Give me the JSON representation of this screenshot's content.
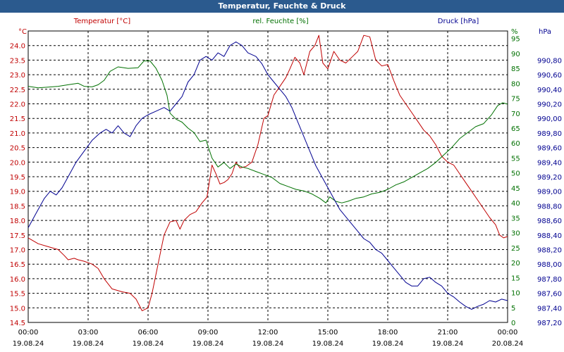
{
  "window": {
    "title": "Temperatur, Feuchte & Druck"
  },
  "chart_data": {
    "type": "line",
    "title": "Temperatur, Feuchte & Druck",
    "grid": true,
    "x_ticks": [
      {
        "time": "00:00",
        "date": "19.08.24"
      },
      {
        "time": "03:00",
        "date": "19.08.24"
      },
      {
        "time": "06:00",
        "date": "19.08.24"
      },
      {
        "time": "09:00",
        "date": "19.08.24"
      },
      {
        "time": "12:00",
        "date": "19.08.24"
      },
      {
        "time": "15:00",
        "date": "19.08.24"
      },
      {
        "time": "18:00",
        "date": "19.08.24"
      },
      {
        "time": "21:00",
        "date": "19.08.24"
      },
      {
        "time": "00:00",
        "date": "20.08.24"
      }
    ],
    "xlim_hours": [
      0,
      24
    ],
    "axes": {
      "temperature": {
        "label": "Temperatur [°C]",
        "unit": "°C",
        "color": "#c00000",
        "ylim": [
          14.5,
          24.5
        ],
        "ticks": [
          "14.5",
          "15.0",
          "15.5",
          "16.0",
          "16.5",
          "17.0",
          "17.5",
          "18.0",
          "18.5",
          "19.0",
          "19.5",
          "20.0",
          "20.5",
          "21.0",
          "21.5",
          "22.0",
          "22.5",
          "23.0",
          "23.5",
          "24.0"
        ]
      },
      "humidity": {
        "label": "rel. Feuchte [%]",
        "unit": "%",
        "color": "#007000",
        "ylim": [
          0,
          97.5
        ],
        "ticks": [
          "0",
          "5",
          "10",
          "15",
          "20",
          "25",
          "30",
          "35",
          "40",
          "45",
          "50",
          "55",
          "60",
          "65",
          "70",
          "75",
          "80",
          "85",
          "90",
          "95"
        ]
      },
      "pressure": {
        "label": "Druck [hPa]",
        "unit": "hPa",
        "color": "#000090",
        "ylim": [
          987.2,
          991.2
        ],
        "ticks": [
          "987,20",
          "987,40",
          "987,60",
          "987,80",
          "988,00",
          "988,20",
          "988,40",
          "988,60",
          "988,80",
          "989,00",
          "989,20",
          "989,40",
          "989,60",
          "989,80",
          "990,00",
          "990,20",
          "990,40",
          "990,60",
          "990,80"
        ]
      }
    },
    "series": [
      {
        "name": "Temperatur [°C]",
        "axis": "temperature",
        "color": "#c00000",
        "points": [
          [
            0,
            17.4
          ],
          [
            0.5,
            17.2
          ],
          [
            1,
            17.1
          ],
          [
            1.5,
            17.0
          ],
          [
            1.8,
            16.8
          ],
          [
            2,
            16.65
          ],
          [
            2.3,
            16.7
          ],
          [
            2.5,
            16.65
          ],
          [
            2.8,
            16.6
          ],
          [
            3.2,
            16.5
          ],
          [
            3.5,
            16.35
          ],
          [
            3.8,
            16.0
          ],
          [
            4.2,
            15.65
          ],
          [
            4.7,
            15.55
          ],
          [
            5.1,
            15.5
          ],
          [
            5.4,
            15.3
          ],
          [
            5.7,
            14.9
          ],
          [
            6.0,
            15.0
          ],
          [
            6.2,
            15.5
          ],
          [
            6.5,
            16.5
          ],
          [
            6.8,
            17.5
          ],
          [
            7.1,
            17.95
          ],
          [
            7.4,
            18.0
          ],
          [
            7.6,
            17.7
          ],
          [
            7.8,
            18.0
          ],
          [
            8.1,
            18.2
          ],
          [
            8.4,
            18.3
          ],
          [
            8.7,
            18.6
          ],
          [
            8.95,
            18.8
          ],
          [
            9.2,
            19.9
          ],
          [
            9.4,
            19.6
          ],
          [
            9.6,
            19.25
          ],
          [
            9.8,
            19.3
          ],
          [
            10.0,
            19.4
          ],
          [
            10.2,
            19.6
          ],
          [
            10.4,
            20.0
          ],
          [
            10.6,
            19.8
          ],
          [
            10.9,
            19.85
          ],
          [
            11.2,
            20.0
          ],
          [
            11.5,
            20.6
          ],
          [
            11.8,
            21.5
          ],
          [
            12.0,
            21.6
          ],
          [
            12.3,
            22.3
          ],
          [
            12.6,
            22.6
          ],
          [
            12.9,
            22.9
          ],
          [
            13.1,
            23.2
          ],
          [
            13.35,
            23.6
          ],
          [
            13.6,
            23.4
          ],
          [
            13.8,
            23.0
          ],
          [
            14.1,
            23.8
          ],
          [
            14.35,
            24.0
          ],
          [
            14.55,
            24.35
          ],
          [
            14.75,
            23.4
          ],
          [
            15.0,
            23.2
          ],
          [
            15.3,
            23.8
          ],
          [
            15.6,
            23.5
          ],
          [
            15.9,
            23.4
          ],
          [
            16.2,
            23.6
          ],
          [
            16.5,
            23.8
          ],
          [
            16.8,
            24.35
          ],
          [
            17.1,
            24.3
          ],
          [
            17.4,
            23.5
          ],
          [
            17.7,
            23.3
          ],
          [
            18.0,
            23.35
          ],
          [
            18.3,
            22.8
          ],
          [
            18.6,
            22.3
          ],
          [
            18.9,
            22.0
          ],
          [
            19.2,
            21.7
          ],
          [
            19.5,
            21.4
          ],
          [
            19.8,
            21.1
          ],
          [
            20.1,
            20.9
          ],
          [
            20.4,
            20.6
          ],
          [
            20.7,
            20.2
          ],
          [
            21.0,
            20.0
          ],
          [
            21.3,
            19.9
          ],
          [
            21.6,
            19.6
          ],
          [
            21.9,
            19.3
          ],
          [
            22.2,
            19.0
          ],
          [
            22.5,
            18.7
          ],
          [
            22.8,
            18.4
          ],
          [
            23.1,
            18.1
          ],
          [
            23.4,
            17.85
          ],
          [
            23.6,
            17.5
          ],
          [
            23.8,
            17.4
          ],
          [
            24.0,
            17.45
          ]
        ]
      },
      {
        "name": "rel. Feuchte [%]",
        "axis": "humidity",
        "color": "#007000",
        "points": [
          [
            0,
            79
          ],
          [
            0.5,
            78.5
          ],
          [
            1.0,
            78.7
          ],
          [
            1.5,
            79.0
          ],
          [
            2.0,
            79.5
          ],
          [
            2.5,
            80.0
          ],
          [
            2.8,
            79.0
          ],
          [
            3.2,
            78.8
          ],
          [
            3.5,
            79.5
          ],
          [
            3.8,
            81
          ],
          [
            4.1,
            84
          ],
          [
            4.5,
            85.5
          ],
          [
            5.0,
            85.0
          ],
          [
            5.5,
            85.2
          ],
          [
            5.8,
            87.5
          ],
          [
            6.1,
            87.5
          ],
          [
            6.4,
            85.0
          ],
          [
            6.7,
            81
          ],
          [
            6.95,
            76
          ],
          [
            7.1,
            70
          ],
          [
            7.4,
            68
          ],
          [
            7.7,
            67
          ],
          [
            8.0,
            65
          ],
          [
            8.3,
            63.5
          ],
          [
            8.6,
            60.5
          ],
          [
            8.9,
            61.0
          ],
          [
            9.2,
            55
          ],
          [
            9.5,
            52
          ],
          [
            9.8,
            53.5
          ],
          [
            10.1,
            51.5
          ],
          [
            10.4,
            53.0
          ],
          [
            10.7,
            52.0
          ],
          [
            11.0,
            51.5
          ],
          [
            11.4,
            50.5
          ],
          [
            11.8,
            49.5
          ],
          [
            12.2,
            48.5
          ],
          [
            12.6,
            46.5
          ],
          [
            13.0,
            45.5
          ],
          [
            13.4,
            44.5
          ],
          [
            13.8,
            44.0
          ],
          [
            14.2,
            43.0
          ],
          [
            14.6,
            41.5
          ],
          [
            14.9,
            40.0
          ],
          [
            15.1,
            42.0
          ],
          [
            15.4,
            40.5
          ],
          [
            15.7,
            40.0
          ],
          [
            16.0,
            40.5
          ],
          [
            16.4,
            41.5
          ],
          [
            16.8,
            42.0
          ],
          [
            17.2,
            43.0
          ],
          [
            17.6,
            43.5
          ],
          [
            18.0,
            44.5
          ],
          [
            18.4,
            46.0
          ],
          [
            18.8,
            47.0
          ],
          [
            19.2,
            48.5
          ],
          [
            19.6,
            50.0
          ],
          [
            20.0,
            51.5
          ],
          [
            20.4,
            53.5
          ],
          [
            20.8,
            56.0
          ],
          [
            21.2,
            58.5
          ],
          [
            21.6,
            61.5
          ],
          [
            22.0,
            63.5
          ],
          [
            22.4,
            65.5
          ],
          [
            22.8,
            66.5
          ],
          [
            23.2,
            69.5
          ],
          [
            23.5,
            72.5
          ],
          [
            23.75,
            73.5
          ],
          [
            24.0,
            73.0
          ]
        ]
      },
      {
        "name": "Druck [hPa]",
        "axis": "pressure",
        "color": "#000090",
        "points": [
          [
            0,
            988.5
          ],
          [
            0.4,
            988.7
          ],
          [
            0.8,
            988.9
          ],
          [
            1.1,
            989.0
          ],
          [
            1.4,
            988.95
          ],
          [
            1.7,
            989.05
          ],
          [
            2.0,
            989.2
          ],
          [
            2.4,
            989.4
          ],
          [
            2.8,
            989.55
          ],
          [
            3.2,
            989.7
          ],
          [
            3.6,
            989.8
          ],
          [
            3.9,
            989.85
          ],
          [
            4.2,
            989.8
          ],
          [
            4.5,
            989.9
          ],
          [
            4.8,
            989.8
          ],
          [
            5.1,
            989.75
          ],
          [
            5.4,
            989.9
          ],
          [
            5.7,
            990.0
          ],
          [
            6.0,
            990.05
          ],
          [
            6.4,
            990.1
          ],
          [
            6.8,
            990.15
          ],
          [
            7.1,
            990.1
          ],
          [
            7.4,
            990.2
          ],
          [
            7.7,
            990.3
          ],
          [
            8.0,
            990.5
          ],
          [
            8.3,
            990.6
          ],
          [
            8.6,
            990.8
          ],
          [
            8.9,
            990.85
          ],
          [
            9.2,
            990.8
          ],
          [
            9.5,
            990.9
          ],
          [
            9.8,
            990.85
          ],
          [
            10.1,
            991.0
          ],
          [
            10.4,
            991.05
          ],
          [
            10.7,
            991.0
          ],
          [
            11.0,
            990.9
          ],
          [
            11.4,
            990.85
          ],
          [
            11.7,
            990.75
          ],
          [
            12.0,
            990.6
          ],
          [
            12.3,
            990.5
          ],
          [
            12.6,
            990.4
          ],
          [
            12.9,
            990.3
          ],
          [
            13.2,
            990.15
          ],
          [
            13.5,
            989.95
          ],
          [
            13.8,
            989.75
          ],
          [
            14.1,
            989.55
          ],
          [
            14.4,
            989.35
          ],
          [
            14.7,
            989.2
          ],
          [
            15.0,
            989.05
          ],
          [
            15.3,
            988.9
          ],
          [
            15.6,
            988.75
          ],
          [
            15.9,
            988.65
          ],
          [
            16.2,
            988.55
          ],
          [
            16.5,
            988.45
          ],
          [
            16.8,
            988.35
          ],
          [
            17.1,
            988.3
          ],
          [
            17.4,
            988.2
          ],
          [
            17.7,
            988.15
          ],
          [
            18.0,
            988.05
          ],
          [
            18.3,
            987.95
          ],
          [
            18.6,
            987.85
          ],
          [
            18.9,
            987.75
          ],
          [
            19.2,
            987.7
          ],
          [
            19.5,
            987.7
          ],
          [
            19.8,
            987.8
          ],
          [
            20.1,
            987.82
          ],
          [
            20.4,
            987.75
          ],
          [
            20.7,
            987.7
          ],
          [
            21.0,
            987.6
          ],
          [
            21.3,
            987.55
          ],
          [
            21.6,
            987.48
          ],
          [
            21.9,
            987.42
          ],
          [
            22.2,
            987.38
          ],
          [
            22.5,
            987.42
          ],
          [
            22.8,
            987.45
          ],
          [
            23.1,
            987.5
          ],
          [
            23.4,
            987.48
          ],
          [
            23.7,
            987.52
          ],
          [
            24.0,
            987.5
          ]
        ]
      }
    ]
  }
}
